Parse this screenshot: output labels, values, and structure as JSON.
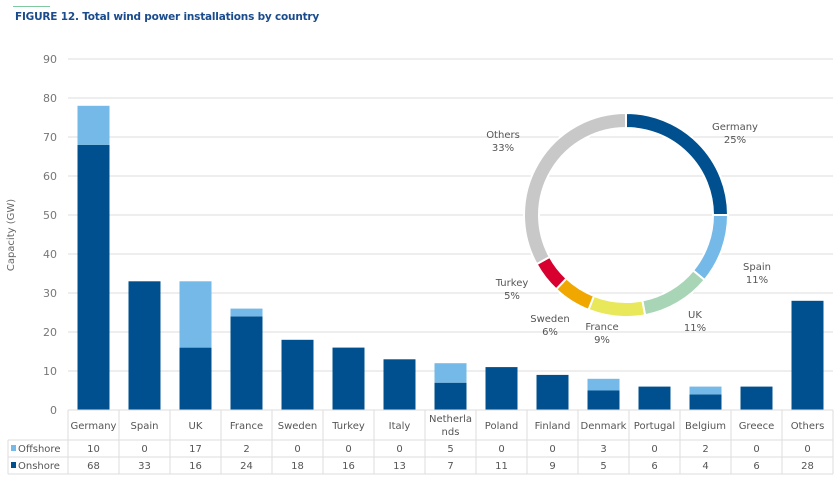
{
  "figure_title": "FIGURE 12.  Total wind power installations by country",
  "chart_data": [
    {
      "type": "bar",
      "stacked": true,
      "categories": [
        "Germany",
        "Spain",
        "UK",
        "France",
        "Sweden",
        "Turkey",
        "Italy",
        "Netherla nds",
        "Poland",
        "Finland",
        "Denmark",
        "Portugal",
        "Belgium",
        "Greece",
        "Others"
      ],
      "series": [
        {
          "name": "Offshore",
          "color": "#74b9e7",
          "values": [
            10,
            0,
            17,
            2,
            0,
            0,
            0,
            5,
            0,
            0,
            3,
            0,
            2,
            0,
            0
          ]
        },
        {
          "name": "Onshore",
          "color": "#00508f",
          "values": [
            68,
            33,
            16,
            24,
            18,
            16,
            13,
            7,
            11,
            9,
            5,
            6,
            4,
            6,
            28
          ]
        }
      ],
      "ylabel": "Capacity (GW)",
      "ylim": [
        0,
        90
      ],
      "yticks": [
        0,
        10,
        20,
        30,
        40,
        50,
        60,
        70,
        80,
        90
      ],
      "grid": true,
      "legend": "data-table"
    },
    {
      "type": "pie",
      "donut": true,
      "labels": [
        "Germany",
        "Spain",
        "UK",
        "France",
        "Sweden",
        "Turkey",
        "Others"
      ],
      "values": [
        25,
        11,
        11,
        9,
        6,
        5,
        33
      ],
      "value_labels": [
        "25%",
        "11%",
        "11%",
        "9%",
        "6%",
        "5%",
        "33%"
      ],
      "colors": [
        "#00508f",
        "#74b9e7",
        "#a8d5b5",
        "#e8e85a",
        "#f0a800",
        "#d7002f",
        "#c8c8c8"
      ]
    }
  ]
}
